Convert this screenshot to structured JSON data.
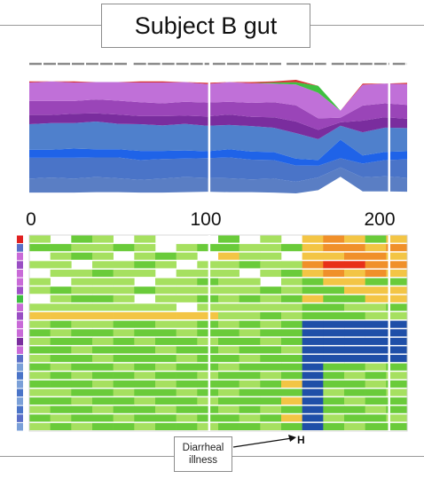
{
  "title": "Subject B gut",
  "callout": {
    "line1": "Diarrheal",
    "line2": "illness"
  },
  "marker": "H",
  "chart_data": {
    "type": "area",
    "title": "Subject B gut",
    "x_ticks": [
      0,
      100,
      200
    ],
    "xlim": [
      0,
      210
    ],
    "gaps": [
      100,
      200
    ],
    "illness_interval": [
      150,
      162
    ],
    "stream_layers": [
      {
        "color": "#5a7ec4",
        "thickness": [
          0.12,
          0.13,
          0.12,
          0.13,
          0.12,
          0.11,
          0.12,
          0.13,
          0.12,
          0.12,
          0.11,
          0.12,
          0.1,
          0.11,
          0.08,
          0.12,
          0.13,
          0.12
        ]
      },
      {
        "color": "#4a74c8",
        "thickness": [
          0.18,
          0.17,
          0.18,
          0.17,
          0.18,
          0.17,
          0.17,
          0.16,
          0.17,
          0.18,
          0.17,
          0.16,
          0.14,
          0.1,
          0.08,
          0.12,
          0.14,
          0.16
        ]
      },
      {
        "color": "#1f63e8",
        "thickness": [
          0.07,
          0.07,
          0.08,
          0.07,
          0.07,
          0.08,
          0.07,
          0.07,
          0.06,
          0.07,
          0.07,
          0.07,
          0.06,
          0.05,
          0.16,
          0.07,
          0.07,
          0.07
        ]
      },
      {
        "color": "#4f80cc",
        "thickness": [
          0.22,
          0.23,
          0.22,
          0.24,
          0.22,
          0.23,
          0.22,
          0.23,
          0.22,
          0.21,
          0.22,
          0.21,
          0.22,
          0.18,
          0.12,
          0.2,
          0.21,
          0.2
        ]
      },
      {
        "color": "#7a2d9e",
        "thickness": [
          0.08,
          0.07,
          0.08,
          0.07,
          0.08,
          0.07,
          0.08,
          0.07,
          0.08,
          0.09,
          0.08,
          0.09,
          0.1,
          0.08,
          0.03,
          0.1,
          0.09,
          0.08
        ]
      },
      {
        "color": "#9a45b8",
        "thickness": [
          0.12,
          0.12,
          0.11,
          0.12,
          0.12,
          0.12,
          0.11,
          0.12,
          0.12,
          0.11,
          0.12,
          0.13,
          0.14,
          0.1,
          0.04,
          0.13,
          0.12,
          0.12
        ]
      },
      {
        "color": "#c070d8",
        "thickness": [
          0.16,
          0.17,
          0.16,
          0.15,
          0.16,
          0.17,
          0.18,
          0.17,
          0.16,
          0.17,
          0.17,
          0.16,
          0.18,
          0.22,
          0.06,
          0.18,
          0.17,
          0.18
        ]
      },
      {
        "color": "#3fc040",
        "thickness": [
          0.0,
          0.0,
          0.0,
          0.0,
          0.0,
          0.0,
          0.0,
          0.0,
          0.0,
          0.0,
          0.0,
          0.01,
          0.02,
          0.06,
          0.0,
          0.0,
          0.0,
          0.0
        ]
      },
      {
        "color": "#d83030",
        "thickness": [
          0.01,
          0.0,
          0.01,
          0.0,
          0.0,
          0.01,
          0.01,
          0.0,
          0.01,
          0.0,
          0.01,
          0.01,
          0.02,
          0.0,
          0.0,
          0.01,
          0.0,
          0.01
        ]
      }
    ],
    "heatmap_rows": [
      {
        "color": "#e02020",
        "levels": [
          1,
          0,
          2,
          1,
          0,
          1,
          0,
          0,
          0,
          2,
          0,
          1,
          0,
          3,
          4,
          3,
          2,
          3
        ]
      },
      {
        "color": "#5a6fc8",
        "levels": [
          2,
          2,
          1,
          1,
          2,
          1,
          0,
          1,
          2,
          2,
          1,
          1,
          2,
          3,
          4,
          4,
          3,
          4
        ]
      },
      {
        "color": "#c96ad8",
        "levels": [
          0,
          1,
          2,
          1,
          0,
          1,
          2,
          1,
          0,
          3,
          1,
          1,
          0,
          3,
          3,
          4,
          4,
          3
        ]
      },
      {
        "color": "#9a4ec4",
        "levels": [
          1,
          1,
          0,
          1,
          1,
          2,
          1,
          0,
          1,
          1,
          2,
          1,
          1,
          4,
          5,
          5,
          4,
          4
        ]
      },
      {
        "color": "#c96ad8",
        "levels": [
          0,
          1,
          1,
          2,
          1,
          1,
          0,
          1,
          1,
          1,
          0,
          1,
          2,
          3,
          4,
          3,
          4,
          3
        ]
      },
      {
        "color": "#c96ad8",
        "levels": [
          1,
          0,
          1,
          1,
          1,
          0,
          1,
          1,
          2,
          1,
          1,
          0,
          1,
          2,
          3,
          3,
          2,
          2
        ]
      },
      {
        "color": "#a050c8",
        "levels": [
          1,
          2,
          1,
          1,
          1,
          2,
          1,
          1,
          1,
          1,
          1,
          2,
          1,
          2,
          2,
          3,
          3,
          3
        ]
      },
      {
        "color": "#3fc040",
        "levels": [
          0,
          1,
          2,
          2,
          1,
          0,
          1,
          1,
          2,
          1,
          2,
          1,
          2,
          3,
          2,
          2,
          3,
          3
        ]
      },
      {
        "color": "#c96ad8",
        "levels": [
          1,
          1,
          1,
          1,
          1,
          1,
          1,
          0,
          1,
          1,
          1,
          1,
          1,
          2,
          2,
          1,
          1,
          2
        ]
      },
      {
        "color": "#9a4ec4",
        "levels": [
          3,
          3,
          3,
          3,
          3,
          3,
          3,
          3,
          3,
          1,
          1,
          2,
          1,
          2,
          2,
          2,
          1,
          1
        ]
      },
      {
        "color": "#c96ad8",
        "levels": [
          1,
          2,
          1,
          1,
          2,
          2,
          1,
          1,
          2,
          1,
          2,
          1,
          2,
          6,
          6,
          6,
          6,
          6
        ]
      },
      {
        "color": "#c96ad8",
        "levels": [
          2,
          1,
          2,
          2,
          1,
          2,
          2,
          1,
          2,
          2,
          1,
          2,
          2,
          6,
          6,
          6,
          6,
          6
        ]
      },
      {
        "color": "#7a2d9e",
        "levels": [
          1,
          2,
          2,
          1,
          2,
          1,
          2,
          2,
          1,
          2,
          2,
          1,
          2,
          6,
          6,
          6,
          6,
          6
        ]
      },
      {
        "color": "#c96ad8",
        "levels": [
          2,
          2,
          1,
          2,
          2,
          2,
          1,
          2,
          2,
          1,
          2,
          2,
          1,
          6,
          6,
          6,
          6,
          6
        ]
      },
      {
        "color": "#5a6fc8",
        "levels": [
          1,
          2,
          2,
          1,
          2,
          2,
          2,
          1,
          2,
          2,
          1,
          2,
          2,
          6,
          6,
          6,
          6,
          6
        ]
      },
      {
        "color": "#7ba0d8",
        "levels": [
          2,
          1,
          2,
          2,
          1,
          2,
          1,
          2,
          2,
          1,
          2,
          2,
          2,
          6,
          2,
          2,
          1,
          2
        ]
      },
      {
        "color": "#4a74c8",
        "levels": [
          1,
          2,
          1,
          2,
          2,
          1,
          2,
          2,
          1,
          2,
          2,
          1,
          2,
          6,
          2,
          1,
          2,
          1
        ]
      },
      {
        "color": "#7ba0d8",
        "levels": [
          2,
          2,
          2,
          1,
          2,
          2,
          1,
          2,
          2,
          2,
          1,
          2,
          3,
          6,
          2,
          2,
          1,
          2
        ]
      },
      {
        "color": "#4a74c8",
        "levels": [
          1,
          1,
          2,
          2,
          1,
          2,
          2,
          1,
          2,
          1,
          2,
          2,
          2,
          6,
          1,
          2,
          2,
          1
        ]
      },
      {
        "color": "#7ba0d8",
        "levels": [
          2,
          2,
          1,
          2,
          2,
          1,
          2,
          2,
          1,
          2,
          2,
          2,
          3,
          6,
          2,
          1,
          2,
          2
        ]
      },
      {
        "color": "#4a74c8",
        "levels": [
          1,
          2,
          2,
          1,
          2,
          2,
          1,
          2,
          2,
          1,
          2,
          1,
          2,
          6,
          2,
          2,
          1,
          2
        ]
      },
      {
        "color": "#5a6fc8",
        "levels": [
          2,
          1,
          2,
          2,
          1,
          2,
          2,
          1,
          2,
          2,
          1,
          2,
          3,
          6,
          1,
          2,
          2,
          1
        ]
      },
      {
        "color": "#7ba0d8",
        "levels": [
          1,
          2,
          1,
          2,
          2,
          1,
          2,
          2,
          1,
          2,
          2,
          1,
          2,
          6,
          2,
          1,
          2,
          2
        ]
      }
    ]
  }
}
